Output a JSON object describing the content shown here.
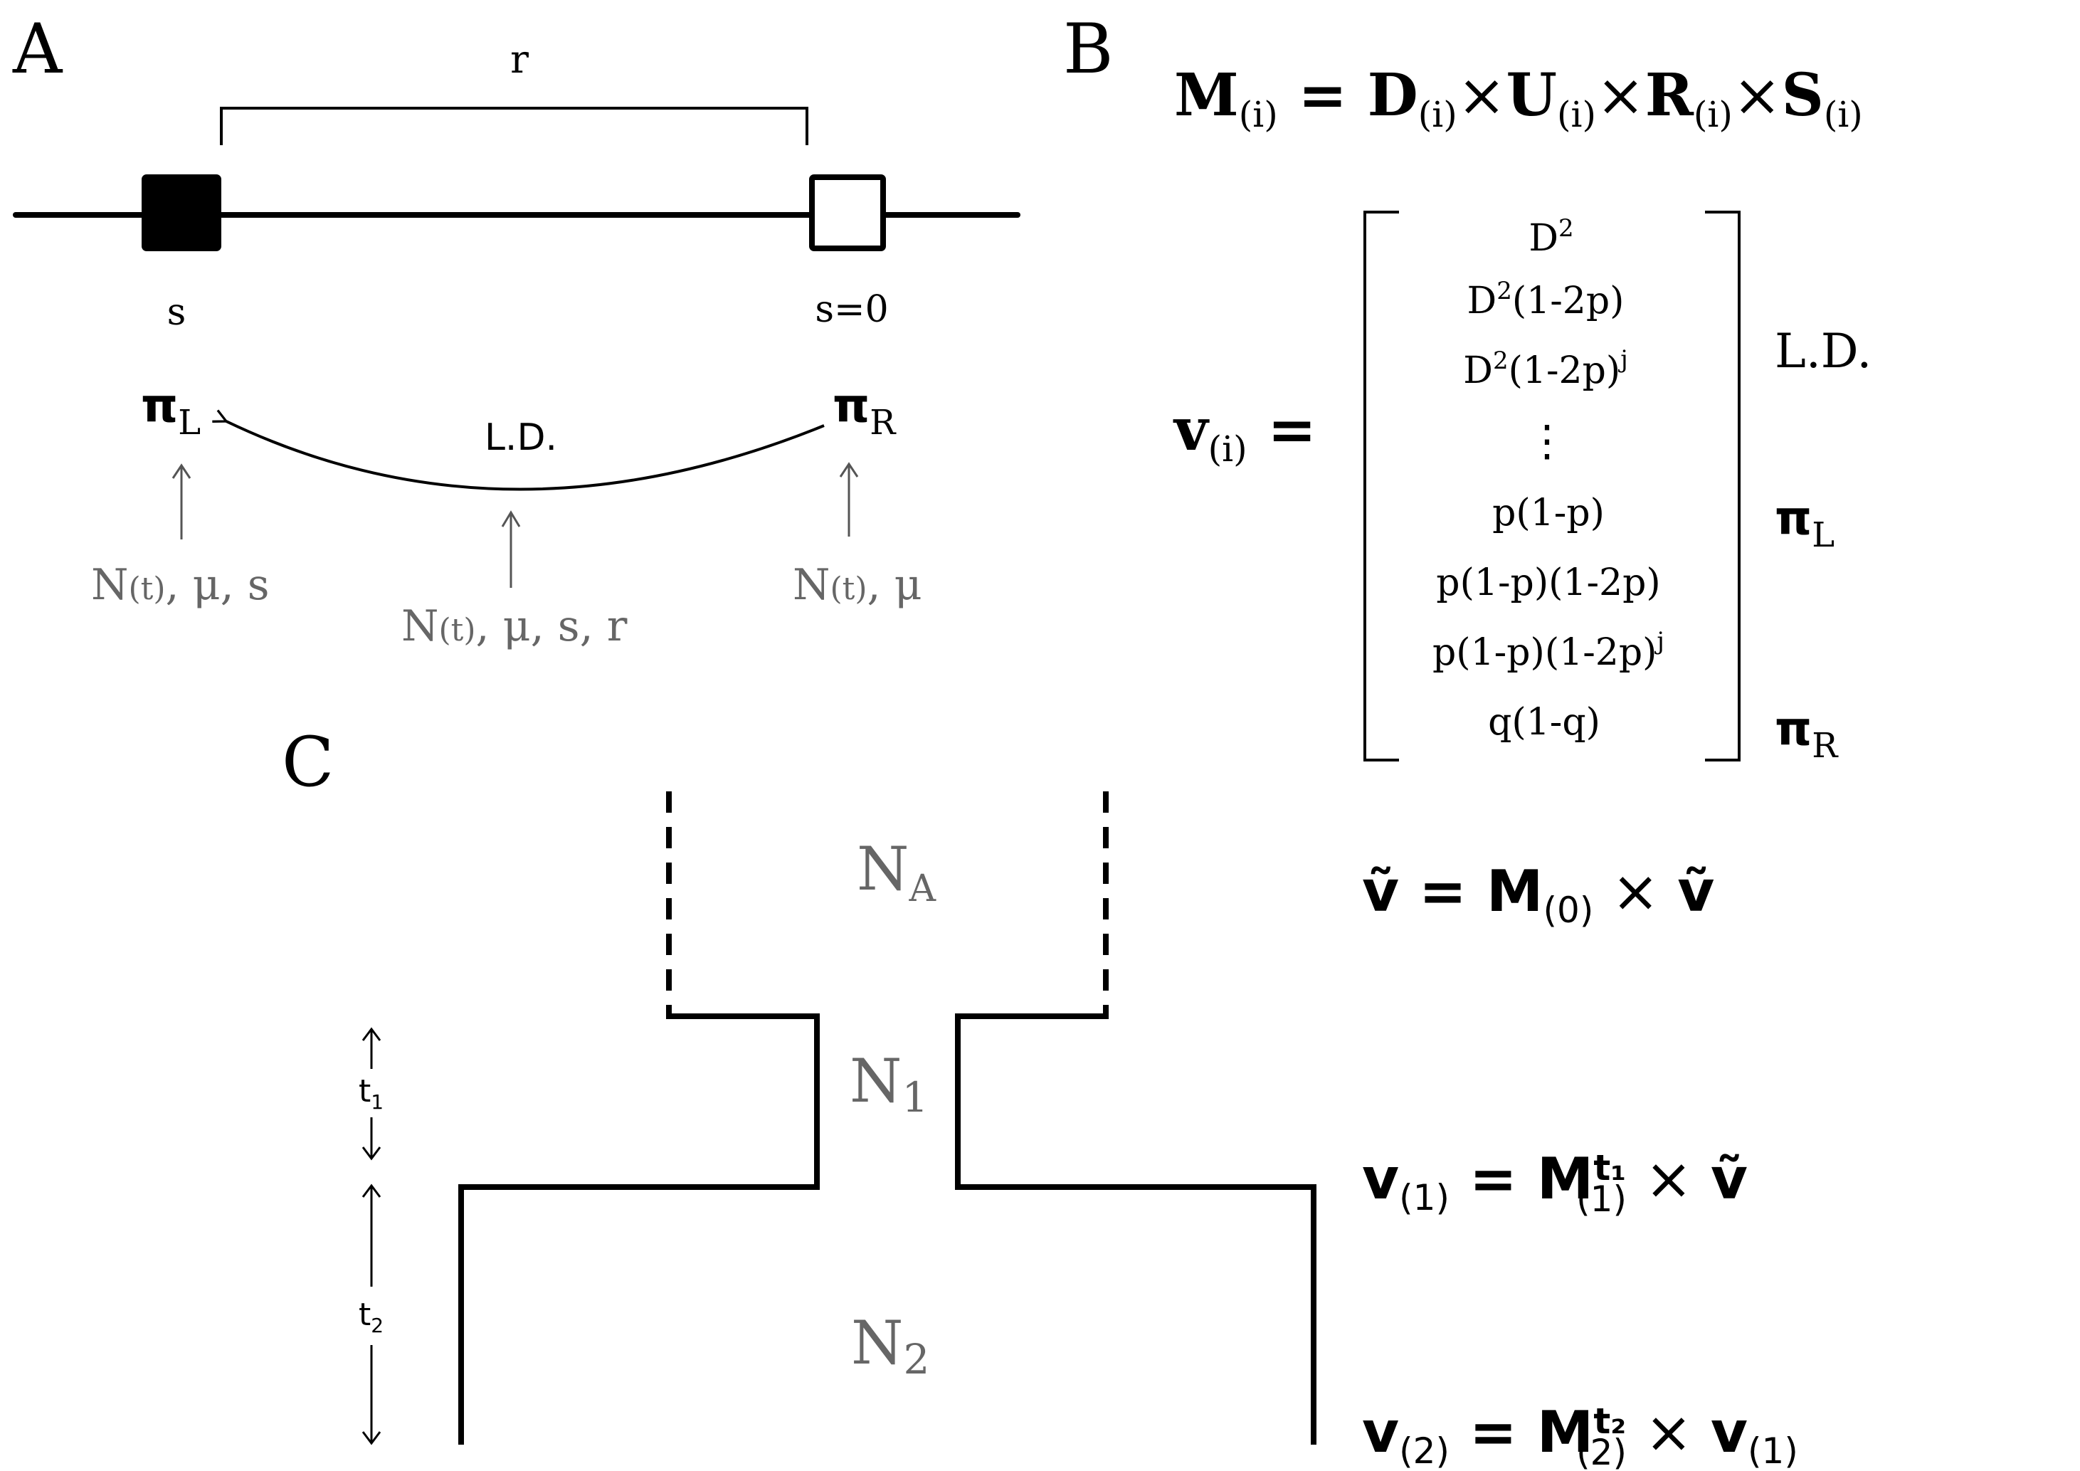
{
  "panels": {
    "a": "A",
    "b": "B",
    "c": "C"
  },
  "panel_a": {
    "r_label": "r",
    "left_site_label": "s",
    "right_site_label": "s=0",
    "pi_symbol": "π",
    "pi_left_sub": "L",
    "pi_right_sub": "R",
    "ld_label": "L.D.",
    "left_params": {
      "n": "N",
      "t": "(t)",
      "rest": ", μ, s"
    },
    "mid_params": {
      "n": "N",
      "t": "(t)",
      "rest": ", μ, s, r"
    },
    "right_params": {
      "n": "N",
      "t": "(t)",
      "rest": ", μ"
    }
  },
  "panel_b": {
    "eq_m": {
      "M": "M",
      "D": "D",
      "U": "U",
      "R": "R",
      "S": "S",
      "sub": "(i)",
      "eq": " = ",
      "times": "×"
    },
    "v_lhs": {
      "v": "v",
      "sub": "(i)",
      "eq": " ="
    },
    "vector_rows": [
      {
        "base": "D",
        "sup": "2",
        "tail": ""
      },
      {
        "base": "D",
        "sup": "2",
        "tail": "(1-2p)"
      },
      {
        "base": "D",
        "sup": "2",
        "tail": "(1-2p)",
        "tail_sup": "j"
      },
      {
        "base": "⋮"
      },
      {
        "base": "p(1-p)"
      },
      {
        "base": "p(1-p)(1-2p)"
      },
      {
        "base": "p(1-p)(1-2p)",
        "tail_sup": "j"
      },
      {
        "base": "q(1-q)"
      }
    ],
    "labels": {
      "ld": "L.D.",
      "pi": "π",
      "pi_left_sub": "L",
      "pi_right_sub": "R"
    }
  },
  "panel_c": {
    "pops": {
      "na": {
        "n": "N",
        "sub": "A"
      },
      "n1": {
        "n": "N",
        "sub": "1"
      },
      "n2": {
        "n": "N",
        "sub": "2"
      }
    },
    "t1": {
      "t": "t",
      "sub": "1"
    },
    "t2": {
      "t": "t",
      "sub": "2"
    },
    "eq0": {
      "v": "ṽ",
      "eq": " = ",
      "M": "M",
      "sub": "(0)",
      "times": " × ",
      "rhs": "ṽ"
    },
    "eq1": {
      "v": "v",
      "vsub": "(1)",
      "eq": " = ",
      "M": "M",
      "sup": "t₁",
      "sub": "(1)",
      "times": " × ",
      "rhs": "ṽ"
    },
    "eq2": {
      "v": "v",
      "vsub": "(2)",
      "eq": " = ",
      "M": "M",
      "sup": "t₂",
      "sub": "(2)",
      "times": " × ",
      "rhs": "v",
      "rhs_sub": "(1)"
    }
  },
  "colors": {
    "ink": "#000000",
    "parameter_gray": "#666666",
    "arrow_gray": "#555555"
  }
}
